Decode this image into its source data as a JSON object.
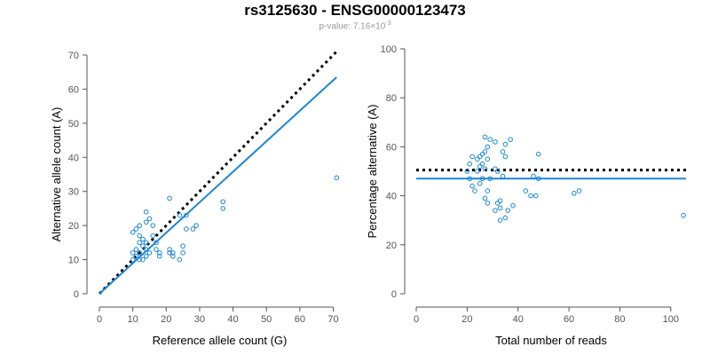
{
  "title": "rs3125630 - ENSG00000123473",
  "subtitle": {
    "prefix": "p-value: 7.16×10",
    "exponent": "-3"
  },
  "colors": {
    "point": "#1c86d6",
    "fit_line": "#1c86d6",
    "reference_line": "#000000",
    "axis": "#555555"
  },
  "chart_data": [
    {
      "type": "scatter",
      "xlabel": "Reference allele count (G)",
      "ylabel": "Alternative allele count (A)",
      "xlim": [
        0,
        72
      ],
      "ylim": [
        0,
        70
      ],
      "xticks": [
        0,
        10,
        20,
        30,
        40,
        50,
        60,
        70
      ],
      "yticks": [
        0,
        10,
        20,
        30,
        40,
        50,
        60,
        70
      ],
      "lines": [
        {
          "name": "expected",
          "style": "dotted",
          "x": [
            0,
            71
          ],
          "y": [
            0,
            71
          ]
        },
        {
          "name": "fit",
          "style": "solid",
          "x": [
            0,
            71
          ],
          "y": [
            0,
            63.5
          ]
        }
      ],
      "points": [
        {
          "x": 10,
          "y": 10
        },
        {
          "x": 10,
          "y": 12
        },
        {
          "x": 10,
          "y": 18
        },
        {
          "x": 11,
          "y": 11
        },
        {
          "x": 11,
          "y": 13
        },
        {
          "x": 11,
          "y": 19
        },
        {
          "x": 12,
          "y": 10
        },
        {
          "x": 12,
          "y": 12
        },
        {
          "x": 12,
          "y": 15
        },
        {
          "x": 12,
          "y": 17
        },
        {
          "x": 12,
          "y": 20
        },
        {
          "x": 13,
          "y": 10
        },
        {
          "x": 13,
          "y": 14
        },
        {
          "x": 13,
          "y": 16
        },
        {
          "x": 14,
          "y": 11
        },
        {
          "x": 14,
          "y": 13
        },
        {
          "x": 14,
          "y": 15
        },
        {
          "x": 14,
          "y": 21
        },
        {
          "x": 14,
          "y": 24
        },
        {
          "x": 15,
          "y": 12
        },
        {
          "x": 15,
          "y": 22
        },
        {
          "x": 16,
          "y": 17
        },
        {
          "x": 16,
          "y": 20
        },
        {
          "x": 17,
          "y": 13
        },
        {
          "x": 17,
          "y": 15
        },
        {
          "x": 18,
          "y": 11
        },
        {
          "x": 18,
          "y": 12
        },
        {
          "x": 21,
          "y": 12
        },
        {
          "x": 21,
          "y": 13
        },
        {
          "x": 21,
          "y": 28
        },
        {
          "x": 22,
          "y": 11
        },
        {
          "x": 22,
          "y": 12
        },
        {
          "x": 24,
          "y": 10
        },
        {
          "x": 24,
          "y": 23
        },
        {
          "x": 25,
          "y": 12
        },
        {
          "x": 25,
          "y": 14
        },
        {
          "x": 26,
          "y": 19
        },
        {
          "x": 26,
          "y": 23
        },
        {
          "x": 28,
          "y": 19
        },
        {
          "x": 29,
          "y": 20
        },
        {
          "x": 37,
          "y": 25
        },
        {
          "x": 37,
          "y": 27
        },
        {
          "x": 71,
          "y": 34
        }
      ]
    },
    {
      "type": "scatter",
      "xlabel": "Total number of reads",
      "ylabel": "Percentage alternative (A)",
      "xlim": [
        0,
        106
      ],
      "ylim": [
        0,
        100
      ],
      "xticks": [
        0,
        20,
        40,
        60,
        80,
        100
      ],
      "yticks": [
        0,
        20,
        40,
        60,
        80,
        100
      ],
      "lines": [
        {
          "name": "expected",
          "style": "dotted",
          "x": [
            0,
            106
          ],
          "y": [
            50.5,
            50.5
          ]
        },
        {
          "name": "fit",
          "style": "solid",
          "x": [
            0,
            106
          ],
          "y": [
            47,
            47
          ]
        }
      ],
      "points": [
        {
          "x": 20,
          "y": 50
        },
        {
          "x": 21,
          "y": 47
        },
        {
          "x": 21,
          "y": 53
        },
        {
          "x": 22,
          "y": 44
        },
        {
          "x": 22,
          "y": 56
        },
        {
          "x": 23,
          "y": 42
        },
        {
          "x": 24,
          "y": 50
        },
        {
          "x": 24,
          "y": 55
        },
        {
          "x": 25,
          "y": 45
        },
        {
          "x": 25,
          "y": 52
        },
        {
          "x": 25,
          "y": 56
        },
        {
          "x": 26,
          "y": 47
        },
        {
          "x": 26,
          "y": 53
        },
        {
          "x": 26,
          "y": 57
        },
        {
          "x": 27,
          "y": 39
        },
        {
          "x": 27,
          "y": 51
        },
        {
          "x": 27,
          "y": 58
        },
        {
          "x": 27,
          "y": 64
        },
        {
          "x": 28,
          "y": 37
        },
        {
          "x": 28,
          "y": 42
        },
        {
          "x": 28,
          "y": 55
        },
        {
          "x": 28,
          "y": 60
        },
        {
          "x": 29,
          "y": 47
        },
        {
          "x": 29,
          "y": 63
        },
        {
          "x": 31,
          "y": 34
        },
        {
          "x": 31,
          "y": 51
        },
        {
          "x": 31,
          "y": 62
        },
        {
          "x": 32,
          "y": 37
        },
        {
          "x": 32,
          "y": 50
        },
        {
          "x": 33,
          "y": 30
        },
        {
          "x": 33,
          "y": 35
        },
        {
          "x": 33,
          "y": 38
        },
        {
          "x": 34,
          "y": 48
        },
        {
          "x": 34,
          "y": 58
        },
        {
          "x": 35,
          "y": 31
        },
        {
          "x": 35,
          "y": 56
        },
        {
          "x": 35,
          "y": 61
        },
        {
          "x": 36,
          "y": 34
        },
        {
          "x": 37,
          "y": 63
        },
        {
          "x": 38,
          "y": 36
        },
        {
          "x": 43,
          "y": 42
        },
        {
          "x": 45,
          "y": 40
        },
        {
          "x": 46,
          "y": 48
        },
        {
          "x": 47,
          "y": 40
        },
        {
          "x": 48,
          "y": 57
        },
        {
          "x": 48,
          "y": 47
        },
        {
          "x": 62,
          "y": 41
        },
        {
          "x": 64,
          "y": 42
        },
        {
          "x": 105,
          "y": 32
        }
      ]
    }
  ]
}
